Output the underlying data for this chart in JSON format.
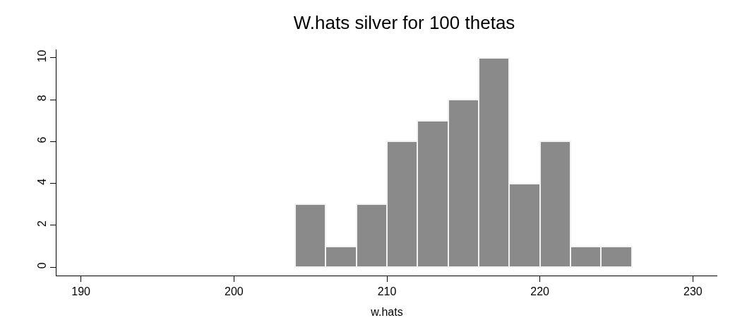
{
  "chart_data": {
    "type": "histogram",
    "title": "W.hats silver for 100 thetas",
    "xlabel": "w.hats",
    "bins": [
      204,
      206,
      208,
      210,
      212,
      214,
      216,
      218,
      220,
      222,
      224,
      226
    ],
    "values": [
      3,
      1,
      3,
      6,
      7,
      8,
      10,
      4,
      6,
      1,
      1
    ],
    "color": "#8a8a8a",
    "xlim": [
      188.4,
      231.6
    ],
    "xticks": [
      190,
      200,
      210,
      220,
      230
    ],
    "ylim": [
      -0.4,
      10.4
    ],
    "yticks": [
      0,
      2,
      4,
      6,
      8,
      10
    ]
  }
}
